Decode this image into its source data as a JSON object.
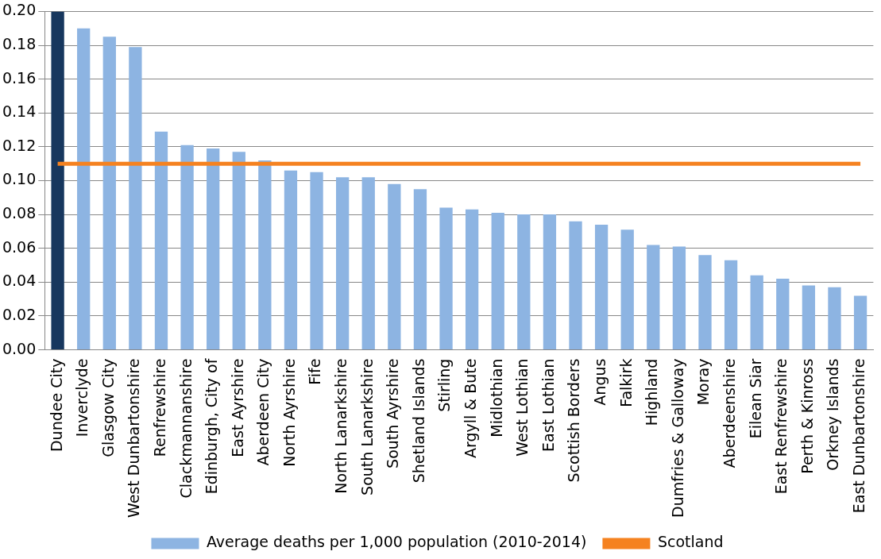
{
  "chart_data": {
    "type": "bar",
    "categories": [
      "Dundee City",
      "Inverclyde",
      "Glasgow City",
      "West Dunbartonshire",
      "Renfrewshire",
      "Clackmannanshire",
      "Edinburgh, City of",
      "East Ayrshire",
      "Aberdeen City",
      "North Ayrshire",
      "Fife",
      "North Lanarkshire",
      "South Lanarkshire",
      "South Ayrshire",
      "Shetland Islands",
      "Stirling",
      "Argyll & Bute",
      "Midlothian",
      "West Lothian",
      "East Lothian",
      "Scottish Borders",
      "Angus",
      "Falkirk",
      "Highland",
      "Dumfries & Galloway",
      "Moray",
      "Aberdeenshire",
      "Eilean Siar",
      "East Renfrewshire",
      "Perth & Kinross",
      "Orkney Islands",
      "East Dunbartonshire"
    ],
    "series": [
      {
        "name": "Average deaths per 1,000 population (2010-2014)",
        "color": "#8db4e2",
        "colors": [
          "#17375e",
          "#8db4e2",
          "#8db4e2",
          "#8db4e2",
          "#8db4e2",
          "#8db4e2",
          "#8db4e2",
          "#8db4e2",
          "#8db4e2",
          "#8db4e2",
          "#8db4e2",
          "#8db4e2",
          "#8db4e2",
          "#8db4e2",
          "#8db4e2",
          "#8db4e2",
          "#8db4e2",
          "#8db4e2",
          "#8db4e2",
          "#8db4e2",
          "#8db4e2",
          "#8db4e2",
          "#8db4e2",
          "#8db4e2",
          "#8db4e2",
          "#8db4e2",
          "#8db4e2",
          "#8db4e2",
          "#8db4e2",
          "#8db4e2",
          "#8db4e2",
          "#8db4e2"
        ],
        "values": [
          0.2,
          0.19,
          0.185,
          0.179,
          0.129,
          0.121,
          0.119,
          0.117,
          0.112,
          0.106,
          0.105,
          0.102,
          0.102,
          0.098,
          0.095,
          0.084,
          0.083,
          0.081,
          0.08,
          0.08,
          0.076,
          0.074,
          0.071,
          0.062,
          0.061,
          0.056,
          0.053,
          0.044,
          0.042,
          0.038,
          0.037,
          0.032
        ]
      },
      {
        "name": "Scotland",
        "type": "line",
        "color": "#f58220",
        "values": [
          0.11,
          0.11,
          0.11,
          0.11,
          0.11,
          0.11,
          0.11,
          0.11,
          0.11,
          0.11,
          0.11,
          0.11,
          0.11,
          0.11,
          0.11,
          0.11,
          0.11,
          0.11,
          0.11,
          0.11,
          0.11,
          0.11,
          0.11,
          0.11,
          0.11,
          0.11,
          0.11,
          0.11,
          0.11,
          0.11,
          0.11,
          0.11
        ]
      }
    ],
    "ylim": [
      0,
      0.2
    ],
    "yticks": [
      {
        "value": 0,
        "label": "0.00"
      },
      {
        "value": 0.02,
        "label": "0.02"
      },
      {
        "value": 0.04,
        "label": "0.04"
      },
      {
        "value": 0.06,
        "label": "0.06"
      },
      {
        "value": 0.08,
        "label": "0.08"
      },
      {
        "value": 0.1,
        "label": "0.10"
      },
      {
        "value": 0.12,
        "label": "0.12"
      },
      {
        "value": 0.14,
        "label": "0.14"
      },
      {
        "value": 0.16,
        "label": "0.16"
      },
      {
        "value": 0.18,
        "label": "0.18"
      },
      {
        "value": 0.2,
        "label": "0.20"
      }
    ],
    "grid": "y",
    "legend": "bottom",
    "marker": "none",
    "line_style": "solid"
  }
}
